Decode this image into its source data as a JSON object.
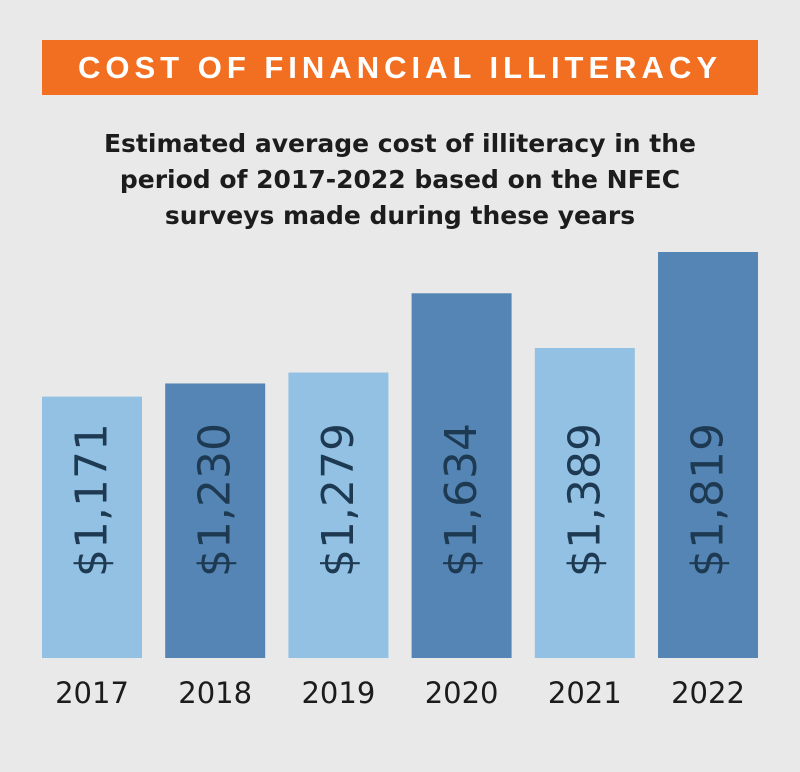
{
  "banner": {
    "title": "COST OF FINANCIAL ILLITERACY"
  },
  "subtitle": {
    "lines": [
      "Estimated average cost of illiteracy in the",
      "period of 2017-2022 based on the NFEC",
      "surveys made during these years"
    ]
  },
  "chart_data": {
    "type": "bar",
    "title": "COST OF FINANCIAL ILLITERACY",
    "subtitle": "Estimated average cost of illiteracy in the period of 2017-2022 based on the NFEC surveys made during these years",
    "categories": [
      "2017",
      "2018",
      "2019",
      "2020",
      "2021",
      "2022"
    ],
    "values": [
      1171,
      1230,
      1279,
      1634,
      1389,
      1819
    ],
    "value_labels": [
      "$1,171",
      "$1,230",
      "$1,279",
      "$1,634",
      "$1,389",
      "$1,819"
    ],
    "xlabel": "",
    "ylabel": "",
    "grid": false,
    "legend": "none",
    "colors": {
      "light": "#92c1e4",
      "dark": "#5485b4",
      "label": "#1e3a52",
      "axis_text": "#1c1c1c",
      "banner": "#f26f21"
    },
    "bar_colors": [
      "#92c1e4",
      "#5485b4",
      "#92c1e4",
      "#5485b4",
      "#92c1e4",
      "#5485b4"
    ]
  }
}
